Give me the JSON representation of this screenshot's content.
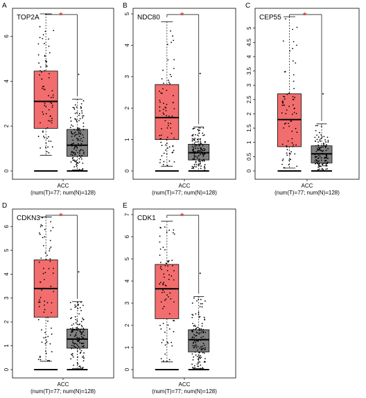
{
  "colors": {
    "tumor_box": "#f26d6d",
    "normal_box": "#808080",
    "significance_star": "#d62728",
    "points": "#000000"
  },
  "chart_data": [
    {
      "type": "box",
      "panel": "A",
      "title": "TOP2A",
      "category": "ACC",
      "counts_label": "(num(T)=77; num(N)=128)",
      "ylim": [
        0,
        7
      ],
      "yticks": [
        0,
        2,
        4,
        6
      ],
      "significance": "*",
      "series": [
        {
          "group": "T",
          "color": "#f26d6d",
          "min": 0.7,
          "q1": 1.9,
          "median": 3.1,
          "q3": 4.45,
          "max": 7.0
        },
        {
          "group": "N",
          "color": "#808080",
          "min": 0.05,
          "q1": 0.65,
          "median": 1.15,
          "q3": 1.85,
          "max": 3.2,
          "outliers": [
            4.3
          ]
        }
      ]
    },
    {
      "type": "box",
      "panel": "B",
      "title": "NDC80",
      "category": "ACC",
      "counts_label": "(num(T)=77; num(N)=128)",
      "ylim": [
        0,
        5
      ],
      "yticks": [
        0,
        1,
        2,
        3,
        4,
        5
      ],
      "significance": "*",
      "series": [
        {
          "group": "T",
          "color": "#f26d6d",
          "min": 0.15,
          "q1": 1.0,
          "median": 1.7,
          "q3": 2.75,
          "max": 4.75
        },
        {
          "group": "N",
          "color": "#808080",
          "min": 0.0,
          "q1": 0.35,
          "median": 0.58,
          "q3": 0.85,
          "max": 1.4,
          "outliers": [
            3.1
          ]
        }
      ]
    },
    {
      "type": "box",
      "panel": "C",
      "title": "CEP55",
      "category": "ACC",
      "counts_label": "(num(T)=77; num(N)=128)",
      "ylim": [
        0,
        5.5
      ],
      "yticks": [
        0,
        0.5,
        1,
        1.5,
        2,
        2.5,
        3,
        3.5,
        4,
        4.5,
        5
      ],
      "significance": "*",
      "series": [
        {
          "group": "T",
          "color": "#f26d6d",
          "min": 0.1,
          "q1": 0.85,
          "median": 1.8,
          "q3": 2.7,
          "max": 5.4
        },
        {
          "group": "N",
          "color": "#808080",
          "min": 0.0,
          "q1": 0.28,
          "median": 0.6,
          "q3": 0.88,
          "max": 1.65,
          "outliers": [
            2.7
          ]
        }
      ]
    },
    {
      "type": "box",
      "panel": "D",
      "title": "CDKN3",
      "category": "ACC",
      "counts_label": "(num(T)=77; num(N)=128)",
      "ylim": [
        0,
        6.5
      ],
      "yticks": [
        0,
        1,
        2,
        3,
        4,
        5,
        6
      ],
      "significance": "*",
      "series": [
        {
          "group": "T",
          "color": "#f26d6d",
          "min": 0.35,
          "q1": 2.2,
          "median": 3.4,
          "q3": 4.6,
          "max": 6.4
        },
        {
          "group": "N",
          "color": "#808080",
          "min": 0.05,
          "q1": 0.9,
          "median": 1.28,
          "q3": 1.7,
          "max": 2.85,
          "outliers": [
            4.1
          ]
        }
      ]
    },
    {
      "type": "box",
      "panel": "E",
      "title": "CDK1",
      "category": "ACC",
      "counts_label": "(num(T)=77; num(N)=128)",
      "ylim": [
        0,
        7
      ],
      "yticks": [
        0,
        1,
        2,
        3,
        4,
        5,
        6,
        7
      ],
      "significance": "*",
      "series": [
        {
          "group": "T",
          "color": "#f26d6d",
          "min": 0.35,
          "q1": 2.3,
          "median": 3.65,
          "q3": 4.75,
          "max": 6.7
        },
        {
          "group": "N",
          "color": "#808080",
          "min": 0.05,
          "q1": 0.8,
          "median": 1.35,
          "q3": 1.8,
          "max": 3.3,
          "outliers": [
            4.35
          ]
        }
      ]
    }
  ]
}
